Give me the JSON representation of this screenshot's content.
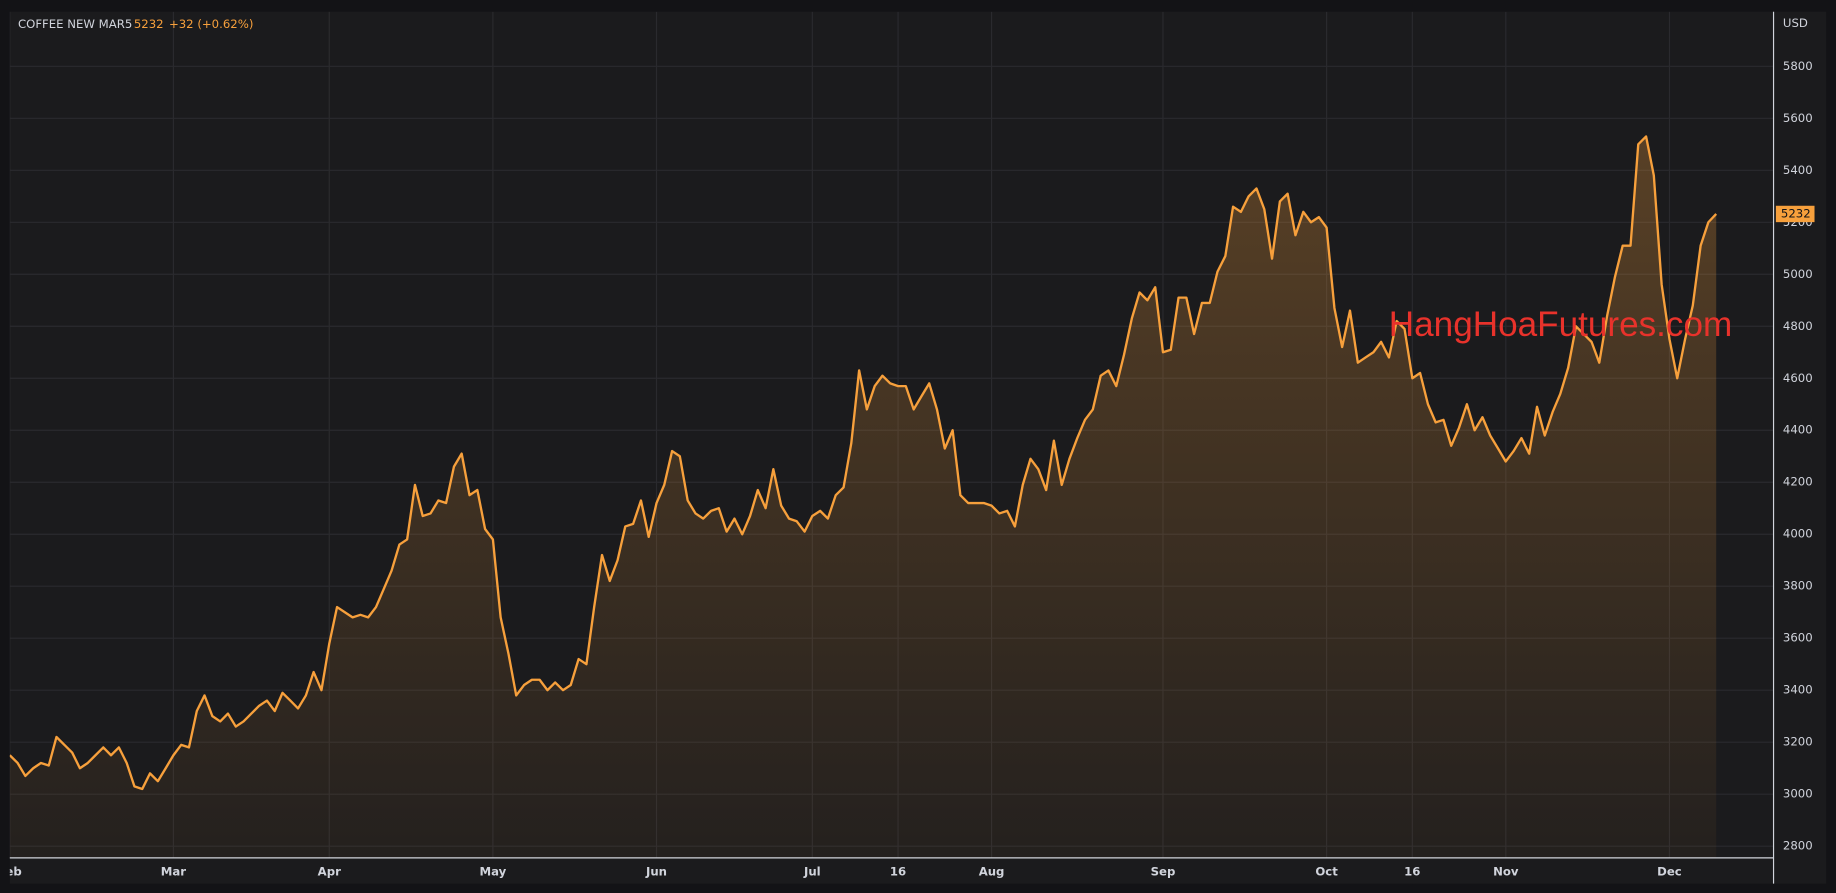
{
  "chart_data": {
    "type": "area",
    "title": "COFFEE NEW MAR5",
    "change": "+32 (+0.62%)",
    "currency": "USD",
    "watermark": "HangHoaFutures.com",
    "categories": [
      "Feb",
      null,
      null,
      null,
      null,
      null,
      null,
      null,
      null,
      null,
      null,
      null,
      null,
      null,
      null,
      null,
      null,
      null,
      null,
      null,
      null,
      "Mar",
      null,
      null,
      null,
      null,
      null,
      null,
      null,
      null,
      null,
      null,
      null,
      null,
      null,
      null,
      null,
      null,
      null,
      null,
      null,
      "Apr",
      null,
      null,
      null,
      null,
      null,
      null,
      null,
      null,
      null,
      null,
      null,
      null,
      null,
      null,
      null,
      null,
      null,
      null,
      null,
      null,
      "May",
      null,
      null,
      null,
      null,
      null,
      null,
      null,
      null,
      null,
      null,
      null,
      null,
      null,
      null,
      null,
      null,
      null,
      null,
      null,
      null,
      "Jun",
      null,
      null,
      null,
      null,
      null,
      null,
      null,
      null,
      null,
      null,
      null,
      null,
      null,
      null,
      null,
      null,
      null,
      null,
      null,
      "Jul",
      null,
      null,
      null,
      null,
      null,
      null,
      null,
      null,
      null,
      null,
      "16",
      null,
      null,
      null,
      null,
      null,
      null,
      null,
      null,
      null,
      null,
      null,
      "Aug",
      null,
      null,
      null,
      null,
      null,
      null,
      null,
      null,
      null,
      null,
      null,
      null,
      null,
      null,
      null,
      null,
      null,
      null,
      null,
      null,
      null,
      "Sep",
      null,
      null,
      null,
      null,
      null,
      null,
      null,
      null,
      null,
      null,
      null,
      null,
      null,
      null,
      null,
      null,
      null,
      null,
      null,
      null,
      "Oct",
      null,
      null,
      null,
      null,
      null,
      null,
      null,
      null,
      null,
      null,
      "16",
      null,
      null,
      null,
      null,
      null,
      null,
      null,
      null,
      null,
      null,
      null,
      "Nov",
      null,
      null,
      null,
      null,
      null,
      null,
      null,
      null,
      null,
      null,
      null,
      null,
      null,
      null,
      null,
      null,
      null,
      null,
      null,
      null,
      "Dec",
      null,
      null,
      null,
      null,
      null,
      null
    ],
    "series": [
      {
        "color": "#f7a03c",
        "values": [
          3150,
          3120,
          3070,
          3100,
          3120,
          3110,
          3220,
          3190,
          3160,
          3100,
          3120,
          3150,
          3180,
          3150,
          3180,
          3120,
          3030,
          3020,
          3080,
          3050,
          3100,
          3150,
          3190,
          3180,
          3320,
          3380,
          3300,
          3280,
          3310,
          3260,
          3280,
          3310,
          3340,
          3360,
          3320,
          3390,
          3360,
          3330,
          3380,
          3470,
          3400,
          3580,
          3720,
          3700,
          3680,
          3690,
          3680,
          3720,
          3790,
          3860,
          3960,
          3980,
          4190,
          4070,
          4080,
          4130,
          4120,
          4260,
          4310,
          4150,
          4170,
          4020,
          3980,
          3680,
          3540,
          3380,
          3420,
          3440,
          3440,
          3400,
          3430,
          3400,
          3420,
          3520,
          3500,
          3720,
          3920,
          3820,
          3900,
          4030,
          4040,
          4130,
          3990,
          4120,
          4190,
          4320,
          4300,
          4130,
          4080,
          4060,
          4090,
          4100,
          4010,
          4060,
          4000,
          4070,
          4170,
          4100,
          4250,
          4110,
          4060,
          4050,
          4010,
          4070,
          4090,
          4060,
          4150,
          4180,
          4350,
          4630,
          4480,
          4570,
          4610,
          4580,
          4570,
          4570,
          4480,
          4530,
          4580,
          4480,
          4330,
          4400,
          4150,
          4120,
          4120,
          4120,
          4110,
          4080,
          4090,
          4030,
          4190,
          4290,
          4250,
          4170,
          4360,
          4190,
          4290,
          4370,
          4440,
          4480,
          4610,
          4630,
          4570,
          4690,
          4830,
          4930,
          4900,
          4950,
          4700,
          4710,
          4910,
          4910,
          4770,
          4890,
          4890,
          5010,
          5070,
          5260,
          5240,
          5300,
          5330,
          5250,
          5060,
          5280,
          5310,
          5150,
          5240,
          5200,
          5220,
          5180,
          4870,
          4720,
          4860,
          4660,
          4680,
          4700,
          4740,
          4680,
          4820,
          4790,
          4600,
          4620,
          4500,
          4430,
          4440,
          4340,
          4410,
          4500,
          4400,
          4450,
          4380,
          4330,
          4280,
          4320,
          4370,
          4310,
          4490,
          4380,
          4470,
          4540,
          4640,
          4800,
          4770,
          4740,
          4660,
          4840,
          4990,
          5110,
          5110,
          5500,
          5530,
          5380,
          4960,
          4750,
          4600,
          4750,
          4880,
          5110,
          5200,
          5232
        ]
      }
    ],
    "ylim": [
      2755,
      6010
    ],
    "yticks": [
      2800,
      3000,
      3200,
      3400,
      3600,
      3800,
      4000,
      4200,
      4400,
      4600,
      4800,
      5000,
      5200,
      5400,
      5600,
      5800
    ],
    "grid": true
  }
}
